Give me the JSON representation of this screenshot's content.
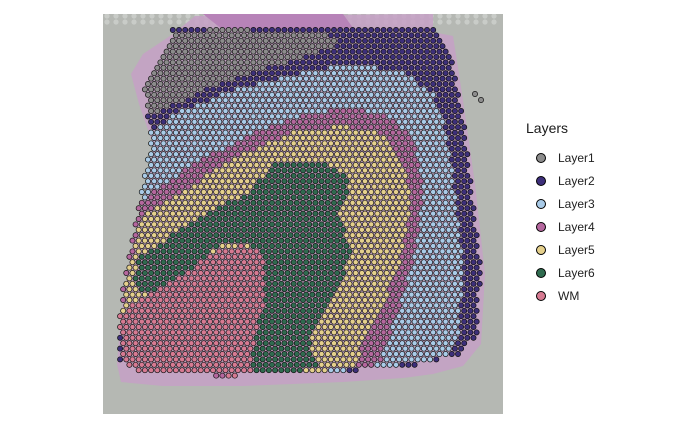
{
  "legend": {
    "title": "Layers",
    "items": [
      {
        "label": "Layer1",
        "color": "#8c8c8c"
      },
      {
        "label": "Layer2",
        "color": "#3d2f7a"
      },
      {
        "label": "Layer3",
        "color": "#a9cbe8"
      },
      {
        "label": "Layer4",
        "color": "#b5679e"
      },
      {
        "label": "Layer5",
        "color": "#e5d08c"
      },
      {
        "label": "Layer6",
        "color": "#2f6b4f"
      },
      {
        "label": "WM",
        "color": "#d77a92"
      }
    ]
  },
  "image": {
    "background_color": "#b5b8b3",
    "tissue_color": "#c6a0c6"
  }
}
